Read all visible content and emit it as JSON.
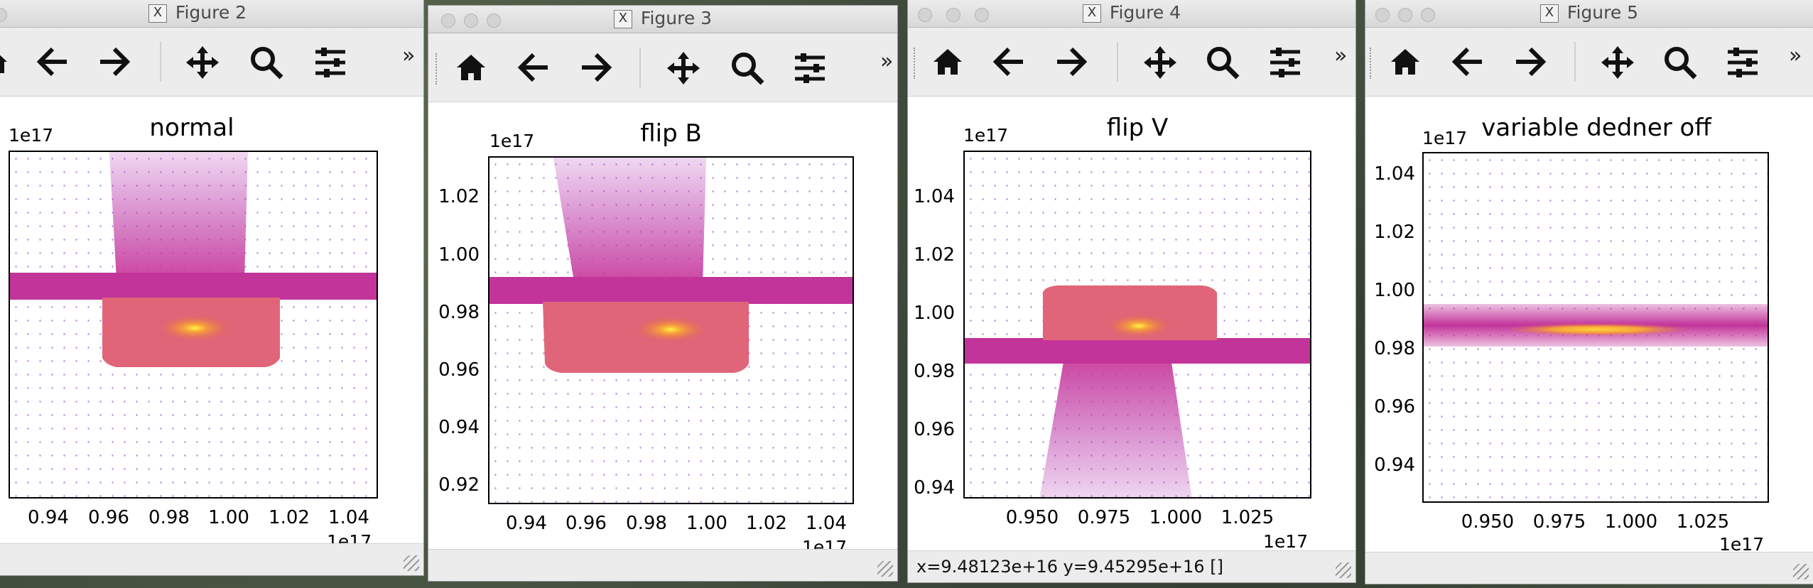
{
  "windows": [
    {
      "id": "fig2",
      "title": "Figure 2",
      "plot_title": "normal",
      "y_exponent": "1e17",
      "x_exponent": "1e17",
      "y_ticks": [
        "",
        "",
        "",
        "",
        "",
        "",
        ""
      ],
      "x_ticks": [
        "0.94",
        "0.96",
        "0.98",
        "1.00",
        "1.02",
        "1.04"
      ],
      "status": ""
    },
    {
      "id": "fig3",
      "title": "Figure 3",
      "plot_title": "flip B",
      "y_exponent": "1e17",
      "x_exponent": "1e17",
      "y_ticks": [
        "1.02",
        "1.00",
        "0.98",
        "0.96",
        "0.94",
        "0.92"
      ],
      "x_ticks": [
        "0.94",
        "0.96",
        "0.98",
        "1.00",
        "1.02",
        "1.04"
      ],
      "status": ""
    },
    {
      "id": "fig4",
      "title": "Figure 4",
      "plot_title": "flip V",
      "y_exponent": "1e17",
      "x_exponent": "1e17",
      "y_ticks": [
        "1.04",
        "1.02",
        "1.00",
        "0.98",
        "0.96",
        "0.94"
      ],
      "x_ticks": [
        "0.950",
        "0.975",
        "1.000",
        "1.025"
      ],
      "status": "x=9.48123e+16  y=9.45295e+16  []"
    },
    {
      "id": "fig5",
      "title": "Figure 5",
      "plot_title": "variable dedner off",
      "y_exponent": "1e17",
      "x_exponent": "1e17",
      "y_ticks": [
        "1.04",
        "1.02",
        "1.00",
        "0.98",
        "0.96",
        "0.94"
      ],
      "x_ticks": [
        "0.950",
        "0.975",
        "1.000",
        "1.025"
      ],
      "status": ""
    }
  ],
  "toolbar_icons": [
    "home-icon",
    "back-arrow-icon",
    "forward-arrow-icon",
    "pan-icon",
    "zoom-icon",
    "configure-icon"
  ],
  "colors": {
    "low": "#7a1fbf",
    "mid": "#d23a8c",
    "high": "#f6a23a",
    "peak": "#ffd33a"
  }
}
